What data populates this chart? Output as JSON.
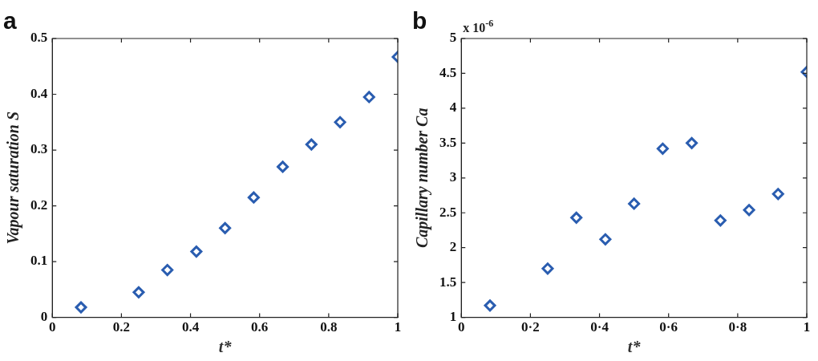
{
  "chart_data": [
    {
      "type": "scatter",
      "title": "a",
      "xlabel": "t*",
      "ylabel": "Vapour saturation S",
      "marker": "diamond",
      "grid": false,
      "legend": false,
      "x": [
        0.083,
        0.25,
        0.333,
        0.417,
        0.5,
        0.583,
        0.667,
        0.75,
        0.833,
        0.917,
        1
      ],
      "series": [
        {
          "color": "#2a5db0",
          "values": [
            0.018,
            0.045,
            0.085,
            0.118,
            0.16,
            0.215,
            0.27,
            0.31,
            0.35,
            0.395,
            0.467
          ]
        }
      ],
      "xlim": [
        0,
        1
      ],
      "xticks": [
        0,
        0.2,
        0.4,
        0.6,
        0.8,
        1
      ],
      "ylim": [
        0,
        0.5
      ],
      "yticks": [
        0,
        0.1,
        0.2,
        0.3,
        0.4,
        0.5
      ]
    },
    {
      "type": "scatter",
      "title": "b",
      "xlabel": "t*",
      "ylabel": "Capillary number Ca",
      "marker": "diamond",
      "grid": false,
      "legend": false,
      "annotations": [
        "x 10$^{-6}$"
      ],
      "x": [
        0.083,
        0.25,
        0.333,
        0.417,
        0.5,
        0.583,
        0.667,
        0.75,
        0.833,
        0.917,
        1
      ],
      "series": [
        {
          "color": "#2a5db0",
          "values": [
            1.17,
            1.7,
            2.43,
            2.12,
            2.63,
            3.42,
            3.5,
            2.39,
            2.54,
            2.77,
            4.52
          ]
        }
      ],
      "xlim": [
        0,
        1
      ],
      "xticks": [
        0,
        {
          "value": 0.2,
          "label": "0·2"
        },
        {
          "value": 0.4,
          "label": "0·4"
        },
        {
          "value": 0.6,
          "label": "0·6"
        },
        {
          "value": 0.8,
          "label": "0·8"
        },
        1
      ],
      "ylim": [
        1,
        5
      ],
      "yticks": [
        1,
        1.5,
        2,
        2.5,
        3,
        3.5,
        4,
        4.5,
        5
      ]
    }
  ]
}
